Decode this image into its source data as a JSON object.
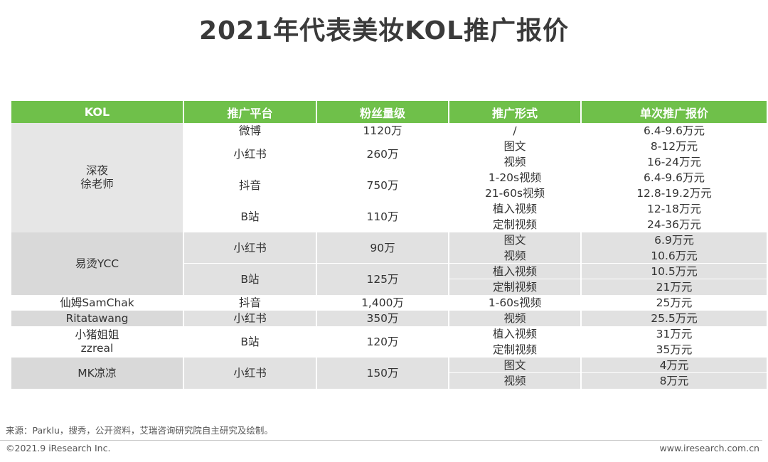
{
  "title": "2021年代表美妆KOL推广报价",
  "table": {
    "headers": [
      "KOL",
      "推广平台",
      "粉丝量级",
      "推广形式",
      "单次推广报价"
    ],
    "kols": [
      {
        "name_lines": [
          "深夜",
          "徐老师"
        ]
      },
      {
        "name_lines": [
          "易烫YCC"
        ]
      },
      {
        "name_lines": [
          "仙姆SamChak"
        ]
      },
      {
        "name_lines": [
          "Ritatawang"
        ]
      },
      {
        "name_lines": [
          "小猪姐姐",
          "zzreal"
        ]
      },
      {
        "name_lines": [
          "MK凉凉"
        ]
      }
    ],
    "platforms": [
      {
        "platform": "微博",
        "fans": "1120万"
      },
      {
        "platform": "小红书",
        "fans": "260万"
      },
      {
        "platform": "抖音",
        "fans": "750万"
      },
      {
        "platform": "B站",
        "fans": "110万"
      },
      {
        "platform": "小红书",
        "fans": "90万"
      },
      {
        "platform": "B站",
        "fans": "125万"
      },
      {
        "platform": "抖音",
        "fans": "1,400万"
      },
      {
        "platform": "小红书",
        "fans": "350万"
      },
      {
        "platform": "B站",
        "fans": "120万"
      },
      {
        "platform": "小红书",
        "fans": "150万"
      }
    ],
    "rows": [
      {
        "form": "/",
        "price": "6.4-9.6万元"
      },
      {
        "form": "图文",
        "price": "8-12万元"
      },
      {
        "form": "视频",
        "price": "16-24万元"
      },
      {
        "form": "1-20s视频",
        "price": "6.4-9.6万元"
      },
      {
        "form": "21-60s视频",
        "price": "12.8-19.2万元"
      },
      {
        "form": "植入视频",
        "price": "12-18万元"
      },
      {
        "form": "定制视频",
        "price": "24-36万元"
      },
      {
        "form": "图文",
        "price": "6.9万元"
      },
      {
        "form": "视频",
        "price": "10.6万元"
      },
      {
        "form": "植入视频",
        "price": "10.5万元"
      },
      {
        "form": "定制视频",
        "price": "21万元"
      },
      {
        "form": "1-60s视频",
        "price": "25万元"
      },
      {
        "form": "视频",
        "price": "25.5万元"
      },
      {
        "form": "植入视频",
        "price": "31万元"
      },
      {
        "form": "定制视频",
        "price": "35万元"
      },
      {
        "form": "图文",
        "price": "4万元"
      },
      {
        "form": "视频",
        "price": "8万元"
      }
    ]
  },
  "footer": {
    "source": "来源：Parklu，搜秀，公开资料，艾瑞咨询研究院自主研究及绘制。",
    "copyright": "©2021.9 iResearch Inc.",
    "website": "www.iresearch.com.cn"
  }
}
